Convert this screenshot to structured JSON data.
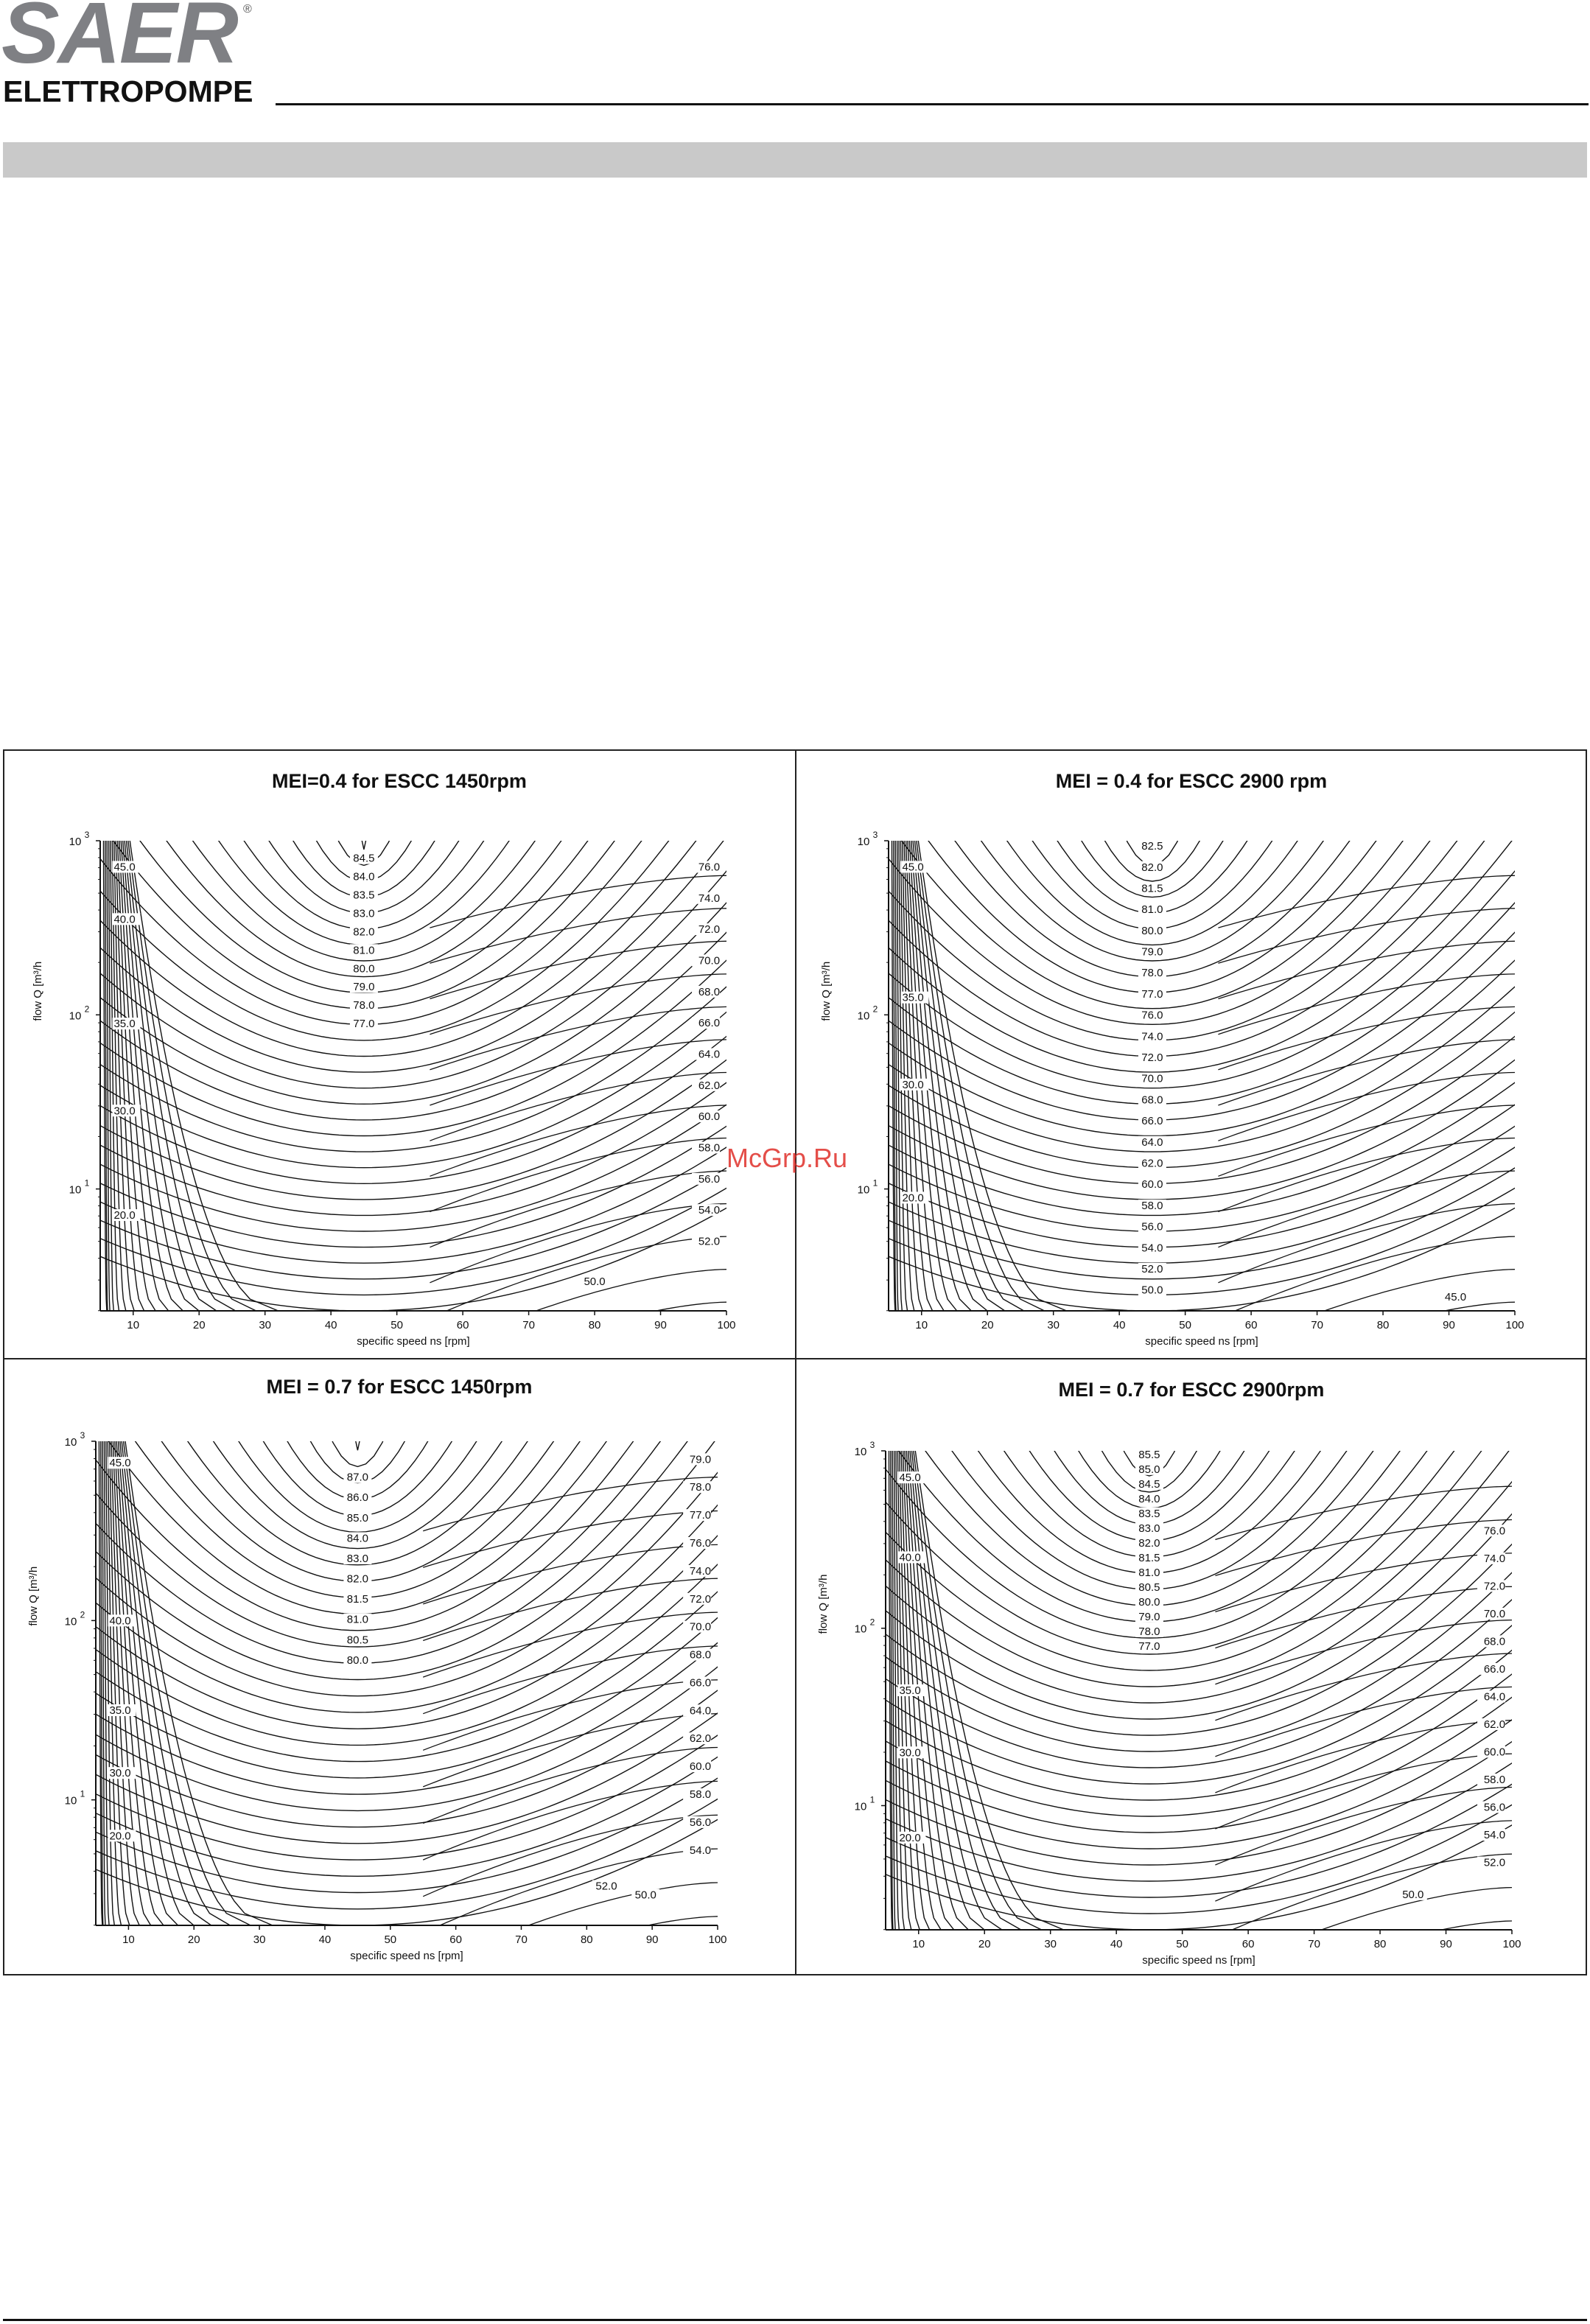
{
  "brand": {
    "name": "SAER",
    "registered": "®",
    "subtitle": "ELETTROPOMPE"
  },
  "watermark": "McGrp.Ru",
  "chart_data": [
    {
      "type": "contour",
      "title": "MEI=0.4 for ESCC 1450rpm",
      "xlabel": "specific speed ns [rpm]",
      "ylabel": "flow Q [m³/h",
      "xlim": [
        5,
        100
      ],
      "ylim_log10": [
        0.3,
        3
      ],
      "yscale": "log",
      "xticks": [
        10,
        20,
        30,
        40,
        50,
        60,
        70,
        80,
        90,
        100
      ],
      "yticks": [
        {
          "base": "10",
          "exp": "1",
          "value": 10
        },
        {
          "base": "10",
          "exp": "2",
          "value": 100
        },
        {
          "base": "10",
          "exp": "3",
          "value": 1000
        }
      ],
      "vertex_ns": 45,
      "left_labels": [
        "45.0",
        "40.0",
        "35.0",
        "30.0",
        "20.0"
      ],
      "left_label_logq": [
        2.85,
        2.55,
        1.95,
        1.45,
        0.85
      ],
      "center_labels": [
        "84.5",
        "84.0",
        "83.5",
        "83.0",
        "82.0",
        "81.0",
        "80.0",
        "79.0",
        "78.0",
        "77.0"
      ],
      "center_top_logq": 2.9,
      "center_bottom_logq": 1.95,
      "right_labels": [
        "76.0",
        "74.0",
        "72.0",
        "70.0",
        "68.0",
        "66.0",
        "64.0",
        "62.0",
        "60.0",
        "58.0",
        "56.0",
        "54.0",
        "52.0"
      ],
      "right_top_logq": 2.85,
      "right_bottom_logq": 0.7,
      "bottom_labels": [
        {
          "text": "50.0",
          "ns": 80,
          "logq": 0.47
        }
      ],
      "corner_label": {
        "text": "45.0",
        "ns": 95,
        "logq": 0.35,
        "show": false
      }
    },
    {
      "type": "contour",
      "title": "MEI = 0.4 for ESCC 2900 rpm",
      "xlabel": "specific speed ns [rpm]",
      "ylabel": "flow Q [m³/h",
      "xlim": [
        5,
        100
      ],
      "ylim_log10": [
        0.3,
        3
      ],
      "yscale": "log",
      "xticks": [
        10,
        20,
        30,
        40,
        50,
        60,
        70,
        80,
        90,
        100
      ],
      "yticks": [
        {
          "base": "10",
          "exp": "1",
          "value": 10
        },
        {
          "base": "10",
          "exp": "2",
          "value": 100
        },
        {
          "base": "10",
          "exp": "3",
          "value": 1000
        }
      ],
      "vertex_ns": 45,
      "left_labels": [
        "45.0",
        "35.0",
        "30.0",
        "20.0"
      ],
      "left_label_logq": [
        2.85,
        2.1,
        1.6,
        0.95
      ],
      "center_labels": [
        "82.5",
        "82.0",
        "81.5",
        "81.0",
        "80.0",
        "79.0",
        "78.0",
        "77.0",
        "76.0",
        "74.0",
        "72.0",
        "70.0",
        "68.0",
        "66.0",
        "64.0",
        "62.0",
        "60.0",
        "58.0",
        "56.0",
        "54.0",
        "52.0",
        "50.0"
      ],
      "center_top_logq": 2.97,
      "center_bottom_logq": 0.42,
      "right_labels": [],
      "right_top_logq": 2.8,
      "right_bottom_logq": 0.8,
      "bottom_labels": [
        {
          "text": "45.0",
          "ns": 91,
          "logq": 0.38
        }
      ],
      "corner_label": {
        "text": "",
        "ns": 0,
        "logq": 0,
        "show": false
      }
    },
    {
      "type": "contour",
      "title": "MEI = 0.7 for ESCC 1450rpm",
      "xlabel": "specific speed ns [rpm]",
      "ylabel": "flow Q [m³/h",
      "xlim": [
        5,
        100
      ],
      "ylim_log10": [
        0.3,
        3
      ],
      "yscale": "log",
      "xticks": [
        10,
        20,
        30,
        40,
        50,
        60,
        70,
        80,
        90,
        100
      ],
      "yticks": [
        {
          "base": "10",
          "exp": "1",
          "value": 10
        },
        {
          "base": "10",
          "exp": "2",
          "value": 100
        },
        {
          "base": "10",
          "exp": "3",
          "value": 1000
        }
      ],
      "vertex_ns": 45,
      "left_labels": [
        "45.0",
        "40.0",
        "35.0",
        "30.0",
        "20.0"
      ],
      "left_label_logq": [
        2.88,
        2.0,
        1.5,
        1.15,
        0.8
      ],
      "center_labels": [
        "87.0",
        "86.0",
        "85.0",
        "84.0",
        "83.0",
        "82.0",
        "81.5",
        "81.0",
        "80.5",
        "80.0"
      ],
      "center_top_logq": 2.8,
      "center_bottom_logq": 1.78,
      "right_labels": [
        "79.0",
        "78.0",
        "77.0",
        "76.0",
        "74.0",
        "72.0",
        "70.0",
        "68.0",
        "66.0",
        "64.0",
        "62.0",
        "60.0",
        "58.0",
        "56.0",
        "54.0"
      ],
      "right_top_logq": 2.9,
      "right_bottom_logq": 0.72,
      "bottom_labels": [
        {
          "text": "52.0",
          "ns": 83,
          "logq": 0.52
        },
        {
          "text": "50.0",
          "ns": 89,
          "logq": 0.47
        }
      ],
      "corner_label": {
        "text": "",
        "ns": 0,
        "logq": 0,
        "show": false
      }
    },
    {
      "type": "contour",
      "title": "MEI = 0.7 for ESCC 2900rpm",
      "xlabel": "specific speed ns [rpm]",
      "ylabel": "flow Q [m³/h",
      "xlim": [
        5,
        100
      ],
      "ylim_log10": [
        0.3,
        3
      ],
      "yscale": "log",
      "xticks": [
        10,
        20,
        30,
        40,
        50,
        60,
        70,
        80,
        90,
        100
      ],
      "yticks": [
        {
          "base": "10",
          "exp": "1",
          "value": 10
        },
        {
          "base": "10",
          "exp": "2",
          "value": 100
        },
        {
          "base": "10",
          "exp": "3",
          "value": 1000
        }
      ],
      "vertex_ns": 45,
      "left_labels": [
        "45.0",
        "40.0",
        "35.0",
        "30.0",
        "20.0"
      ],
      "left_label_logq": [
        2.85,
        2.4,
        1.65,
        1.3,
        0.82
      ],
      "center_labels": [
        "85.5",
        "85.0",
        "84.5",
        "84.0",
        "83.5",
        "83.0",
        "82.0",
        "81.5",
        "81.0",
        "80.5",
        "80.0",
        "79.0",
        "78.0",
        "77.0"
      ],
      "center_top_logq": 2.98,
      "center_bottom_logq": 1.9,
      "right_labels": [
        "76.0",
        "74.0",
        "72.0",
        "70.0",
        "68.0",
        "66.0",
        "64.0",
        "62.0",
        "60.0",
        "58.0",
        "56.0",
        "54.0",
        "52.0"
      ],
      "right_top_logq": 2.55,
      "right_bottom_logq": 0.68,
      "bottom_labels": [
        {
          "text": "50.0",
          "ns": 85,
          "logq": 0.5
        }
      ],
      "corner_label": {
        "text": "",
        "ns": 0,
        "logq": 0,
        "show": false
      }
    }
  ]
}
